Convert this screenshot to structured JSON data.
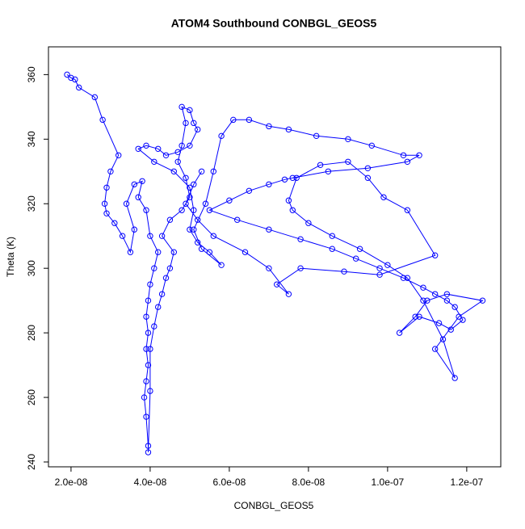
{
  "chart_data": {
    "type": "line",
    "title": "ATOM4 Southbound CONBGL_GEOS5",
    "x_label": "CONBGL_GEOS5",
    "y_label": "Theta (K)",
    "color": "#0000ff",
    "marker": "circle-open",
    "xlim": [
      1.43e-08,
      1.286e-07
    ],
    "ylim": [
      238.5,
      368.6
    ],
    "xticks": [
      {
        "value": 2e-08,
        "label": "2.0e-08"
      },
      {
        "value": 4e-08,
        "label": "4.0e-08"
      },
      {
        "value": 6e-08,
        "label": "6.0e-08"
      },
      {
        "value": 8e-08,
        "label": "8.0e-08"
      },
      {
        "value": 1e-07,
        "label": "1.0e-07"
      },
      {
        "value": 1.2e-07,
        "label": "1.2e-07"
      }
    ],
    "yticks": [
      240,
      260,
      280,
      300,
      320,
      340,
      360
    ],
    "x": [
      1.9e-08,
      2e-08,
      2.1e-08,
      2.2e-08,
      2.6e-08,
      2.8e-08,
      3.2e-08,
      3e-08,
      2.9e-08,
      2.85e-08,
      2.9e-08,
      3.1e-08,
      3.3e-08,
      3.5e-08,
      3.6e-08,
      3.4e-08,
      3.6e-08,
      3.8e-08,
      3.7e-08,
      3.9e-08,
      4e-08,
      4.2e-08,
      4.1e-08,
      4e-08,
      3.95e-08,
      3.9e-08,
      3.95e-08,
      3.9e-08,
      3.95e-08,
      3.9e-08,
      3.85e-08,
      3.9e-08,
      3.95e-08,
      3.95e-08,
      4e-08,
      4e-08,
      4.1e-08,
      4.2e-08,
      4.3e-08,
      4.4e-08,
      4.5e-08,
      4.6e-08,
      4.3e-08,
      4.5e-08,
      4.8e-08,
      5e-08,
      4.9e-08,
      4.7e-08,
      4.8e-08,
      4.9e-08,
      4.8e-08,
      5e-08,
      5.1e-08,
      5.2e-08,
      5e-08,
      4.7e-08,
      4.4e-08,
      4.2e-08,
      3.9e-08,
      3.7e-08,
      4.1e-08,
      4.6e-08,
      5e-08,
      5.1e-08,
      5e-08,
      5.2e-08,
      5.5e-08,
      5.8e-08,
      5.3e-08,
      5.1e-08,
      5.4e-08,
      5.6e-08,
      5.8e-08,
      6.1e-08,
      6.5e-08,
      7e-08,
      7.5e-08,
      8.2e-08,
      9e-08,
      9.6e-08,
      1.04e-07,
      1.08e-07,
      1.05e-07,
      9.5e-08,
      8.5e-08,
      7.6e-08,
      7.4e-08,
      7e-08,
      6.5e-08,
      6e-08,
      5.5e-08,
      6.2e-08,
      7e-08,
      7.8e-08,
      8.6e-08,
      9.2e-08,
      9.8e-08,
      1.04e-07,
      1.09e-07,
      1.12e-07,
      1.15e-07,
      1.17e-07,
      1.19e-07,
      1.16e-07,
      1.13e-07,
      1.08e-07,
      1.03e-07,
      1.07e-07,
      1.1e-07,
      1.15e-07,
      1.24e-07,
      1.18e-07,
      1.12e-07,
      1.17e-07,
      1.14e-07,
      1.09e-07,
      1.05e-07,
      1e-07,
      9.3e-08,
      8.6e-08,
      8e-08,
      7.6e-08,
      7.5e-08,
      7.7e-08,
      8.3e-08,
      9e-08,
      9.5e-08,
      9.9e-08,
      1.05e-07,
      1.12e-07,
      9.8e-08,
      8.9e-08,
      7.8e-08,
      7.2e-08,
      7.5e-08,
      7e-08,
      6.4e-08,
      5.6e-08,
      5.2e-08,
      4.9e-08,
      5.1e-08,
      5.3e-08
    ],
    "values": [
      360,
      359,
      358.5,
      356,
      353,
      346,
      335,
      330,
      325,
      320,
      317,
      314,
      310,
      305,
      312,
      320,
      326,
      327,
      322,
      318,
      310,
      305,
      300,
      295,
      290,
      285,
      280,
      275,
      270,
      265,
      260,
      254,
      245,
      243,
      262,
      275,
      282,
      288,
      292,
      297,
      300,
      305,
      310,
      315,
      318,
      322,
      328,
      333,
      338,
      345,
      350,
      349,
      345,
      343,
      338,
      336,
      335,
      337,
      338,
      337,
      333,
      330,
      325,
      318,
      312,
      308,
      305,
      301,
      306,
      312,
      320,
      330,
      341,
      346,
      346,
      344,
      343,
      341,
      340,
      338,
      335,
      335,
      333,
      331,
      330,
      328,
      327.5,
      326,
      324,
      321,
      318,
      315,
      312,
      309,
      306,
      303,
      300,
      297,
      294,
      292,
      290,
      288,
      284,
      281,
      283,
      285,
      280,
      285,
      290,
      292,
      290,
      285,
      275,
      266,
      278,
      290,
      297,
      301,
      306,
      310,
      314,
      318,
      321,
      328,
      332,
      333,
      328,
      322,
      318,
      304,
      298,
      299,
      300,
      295,
      292,
      300,
      305,
      310,
      315,
      320,
      326,
      330
    ]
  }
}
